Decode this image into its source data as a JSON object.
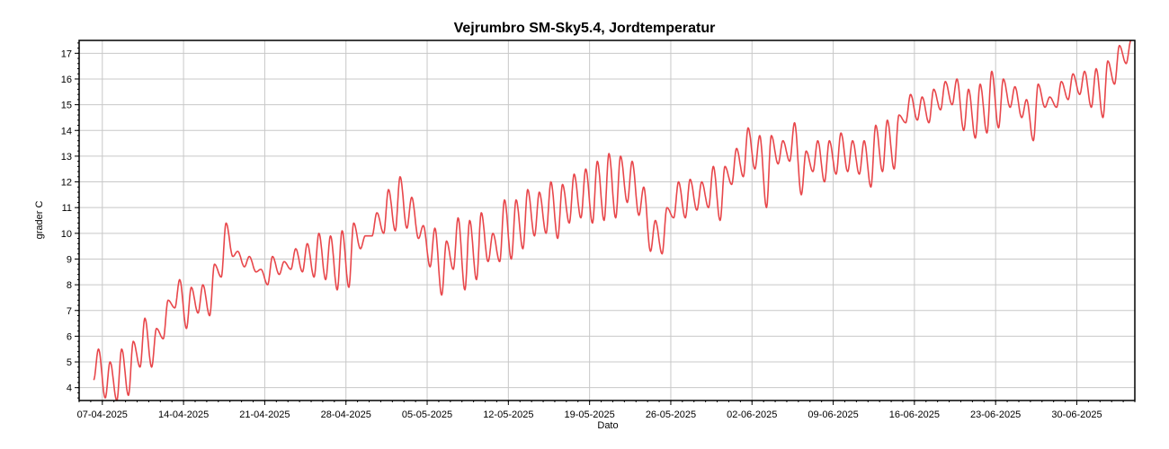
{
  "chart_data": {
    "type": "line",
    "title": "Vejrumbro SM-Sky5.4, Jordtemperatur",
    "xlabel": "Dato",
    "ylabel": "grader C",
    "ylim": [
      3.5,
      17.5
    ],
    "y_ticks": [
      4,
      5,
      6,
      7,
      8,
      9,
      10,
      11,
      12,
      13,
      14,
      15,
      16,
      17
    ],
    "x_range": [
      "2025-04-05",
      "2025-07-05"
    ],
    "x_ticks": [
      "07-04-2025",
      "14-04-2025",
      "21-04-2025",
      "28-04-2025",
      "05-05-2025",
      "12-05-2025",
      "19-05-2025",
      "26-05-2025",
      "02-06-2025",
      "09-06-2025",
      "16-06-2025",
      "23-06-2025",
      "30-06-2025"
    ],
    "grid": true,
    "line_color": "#e8474b",
    "series": [
      {
        "x": [
          "2025-04-06",
          "2025-04-07",
          "2025-04-08",
          "2025-04-09",
          "2025-04-10",
          "2025-04-11",
          "2025-04-12",
          "2025-04-13",
          "2025-04-14",
          "2025-04-15",
          "2025-04-16",
          "2025-04-17",
          "2025-04-18",
          "2025-04-19",
          "2025-04-20",
          "2025-04-21",
          "2025-04-22",
          "2025-04-23",
          "2025-04-24",
          "2025-04-25",
          "2025-04-26",
          "2025-04-27",
          "2025-04-28",
          "2025-04-29",
          "2025-04-30",
          "2025-05-01",
          "2025-05-02",
          "2025-05-03",
          "2025-05-04",
          "2025-05-05",
          "2025-05-06",
          "2025-05-07",
          "2025-05-08",
          "2025-05-09",
          "2025-05-10",
          "2025-05-11",
          "2025-05-12",
          "2025-05-13",
          "2025-05-14",
          "2025-05-15",
          "2025-05-16",
          "2025-05-17",
          "2025-05-18",
          "2025-05-19",
          "2025-05-20",
          "2025-05-21",
          "2025-05-22",
          "2025-05-23",
          "2025-05-24",
          "2025-05-25",
          "2025-05-26",
          "2025-05-27",
          "2025-05-28",
          "2025-05-29",
          "2025-05-30",
          "2025-05-31",
          "2025-06-01",
          "2025-06-02",
          "2025-06-03",
          "2025-06-04",
          "2025-06-05",
          "2025-06-06",
          "2025-06-07",
          "2025-06-08",
          "2025-06-09",
          "2025-06-10",
          "2025-06-11",
          "2025-06-12",
          "2025-06-13",
          "2025-06-14",
          "2025-06-15",
          "2025-06-16",
          "2025-06-17",
          "2025-06-18",
          "2025-06-19",
          "2025-06-20",
          "2025-06-21",
          "2025-06-22",
          "2025-06-23",
          "2025-06-24",
          "2025-06-25",
          "2025-06-26",
          "2025-06-27",
          "2025-06-28",
          "2025-06-29",
          "2025-06-30",
          "2025-07-01",
          "2025-07-02",
          "2025-07-03",
          "2025-07-04"
        ],
        "daily_max": [
          5.5,
          5.0,
          5.5,
          5.8,
          6.7,
          6.3,
          7.4,
          8.2,
          7.9,
          8.0,
          8.8,
          10.4,
          9.3,
          9.1,
          8.6,
          9.1,
          8.9,
          9.4,
          9.6,
          10.0,
          9.9,
          10.1,
          10.4,
          9.9,
          10.8,
          11.7,
          12.2,
          11.4,
          10.3,
          10.2,
          9.7,
          10.6,
          10.5,
          10.8,
          10.0,
          11.3,
          11.3,
          11.7,
          11.6,
          12.0,
          11.9,
          12.3,
          12.5,
          12.8,
          13.1,
          13.0,
          12.8,
          11.8,
          10.5,
          11.0,
          12.0,
          12.1,
          12.0,
          12.6,
          12.6,
          13.3,
          14.1,
          13.8,
          13.8,
          13.6,
          14.3,
          13.2,
          13.6,
          13.6,
          13.9,
          13.6,
          13.6,
          14.2,
          14.4,
          14.6,
          15.4,
          15.3,
          15.6,
          15.9,
          16.0,
          15.6,
          15.8,
          16.3,
          16.0,
          15.7,
          15.2,
          15.8,
          15.3,
          15.9,
          16.2,
          16.3,
          16.4,
          16.7,
          17.3,
          17.5
        ],
        "daily_min": [
          4.3,
          3.6,
          3.5,
          3.7,
          4.8,
          4.8,
          5.9,
          7.1,
          6.3,
          6.9,
          6.8,
          8.3,
          9.1,
          8.7,
          8.5,
          8.0,
          8.4,
          8.6,
          8.5,
          8.3,
          8.2,
          7.8,
          7.9,
          9.4,
          9.9,
          10.0,
          10.1,
          10.2,
          9.8,
          8.7,
          7.6,
          8.6,
          7.8,
          8.2,
          8.9,
          8.9,
          9.0,
          9.4,
          9.9,
          10.0,
          9.8,
          10.4,
          10.6,
          10.4,
          10.5,
          10.6,
          11.2,
          10.7,
          9.3,
          9.2,
          10.6,
          10.6,
          10.9,
          11.0,
          10.5,
          11.9,
          12.2,
          12.5,
          11.0,
          12.7,
          12.8,
          11.5,
          12.4,
          12.0,
          12.3,
          12.4,
          12.3,
          11.8,
          12.4,
          12.5,
          14.3,
          14.4,
          14.3,
          14.8,
          15.0,
          14.0,
          13.7,
          13.9,
          14.1,
          14.9,
          14.5,
          13.6,
          14.9,
          14.9,
          15.2,
          15.4,
          14.9,
          14.5,
          15.8,
          16.6
        ]
      }
    ]
  }
}
